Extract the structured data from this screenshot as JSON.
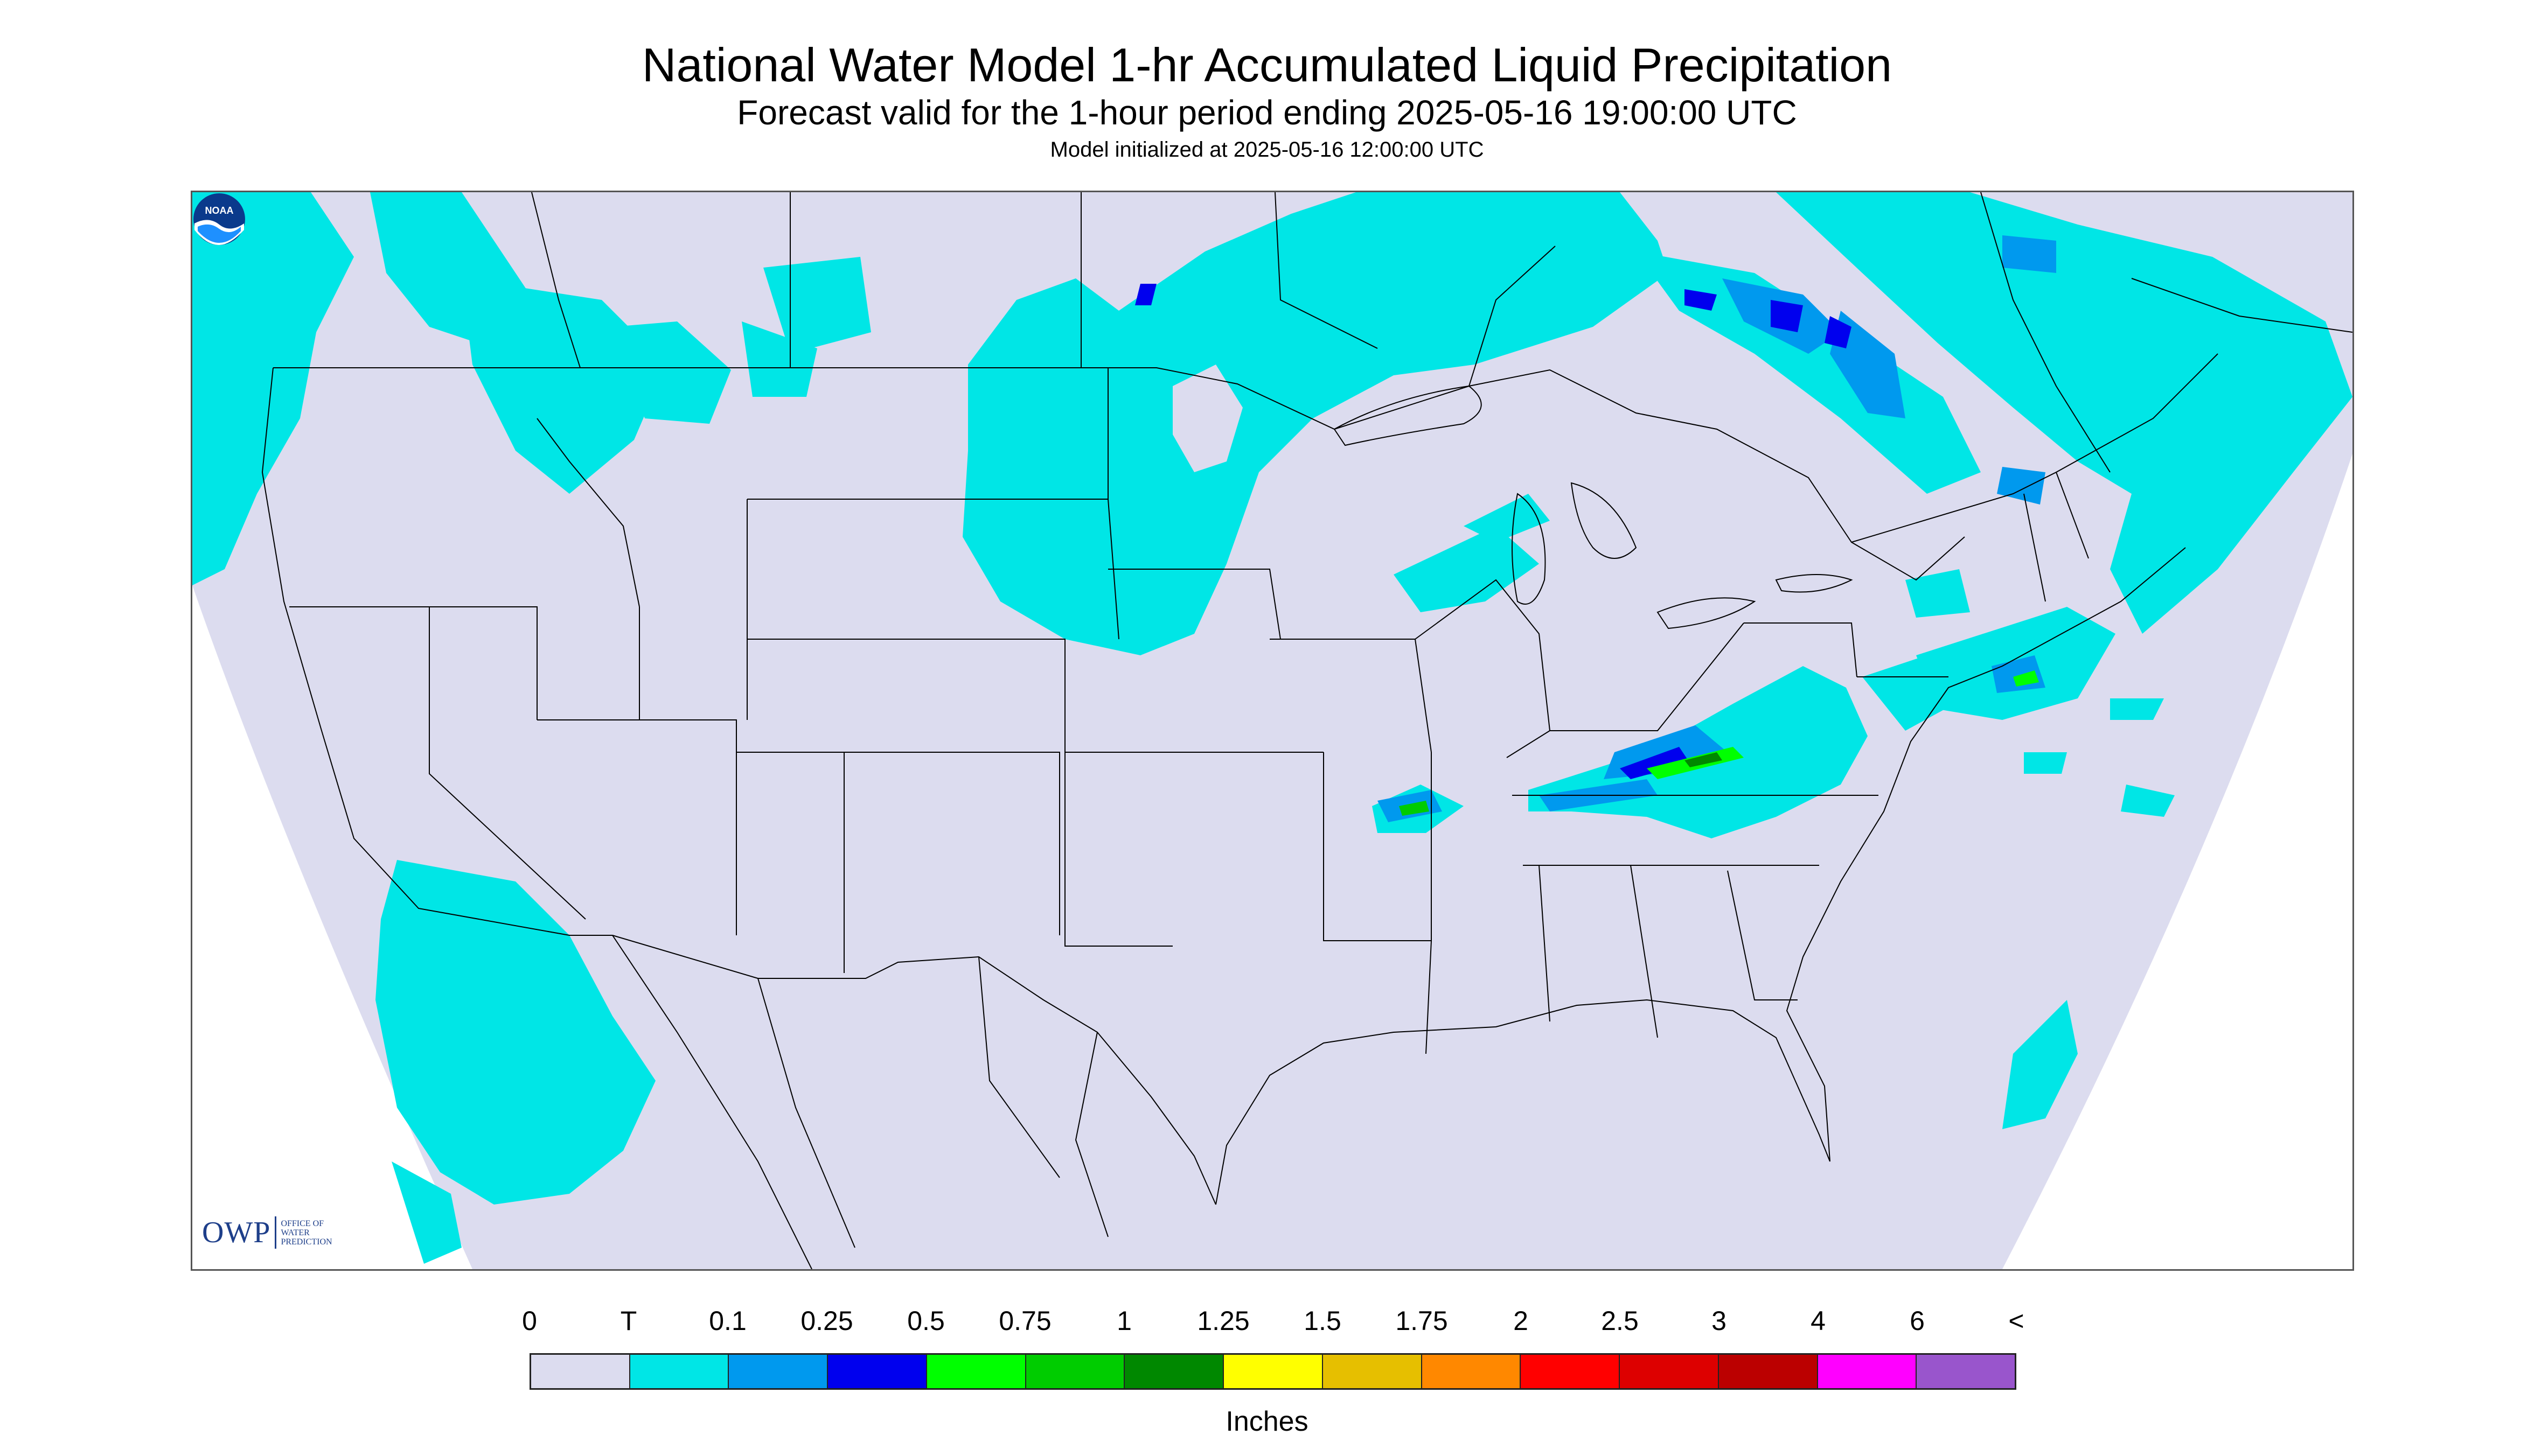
{
  "title": "National Water Model 1-hr Accumulated Liquid Precipitation",
  "subtitle": "Forecast valid for the 1-hour period ending 2025-05-16 19:00:00 UTC",
  "init_line": "Model initialized at 2025-05-16 12:00:00 UTC",
  "logo": {
    "owp_mark": "OWP",
    "owp_lines": [
      "OFFICE OF",
      "WATER",
      "PREDICTION"
    ],
    "noaa_text": "NOAA"
  },
  "legend": {
    "units": "Inches",
    "labels": [
      "0",
      "T",
      "0.1",
      "0.25",
      "0.5",
      "0.75",
      "1",
      "1.25",
      "1.5",
      "1.75",
      "2",
      "2.5",
      "3",
      "4",
      "6",
      "<"
    ],
    "colors": [
      "#dcdcef",
      "#00e6e6",
      "#0099ee",
      "#0000ee",
      "#00ff00",
      "#00cc00",
      "#008800",
      "#ffff00",
      "#e6bf00",
      "#ff8800",
      "#ff0000",
      "#dd0000",
      "#bb0000",
      "#ff00ff",
      "#9955cc"
    ]
  }
}
